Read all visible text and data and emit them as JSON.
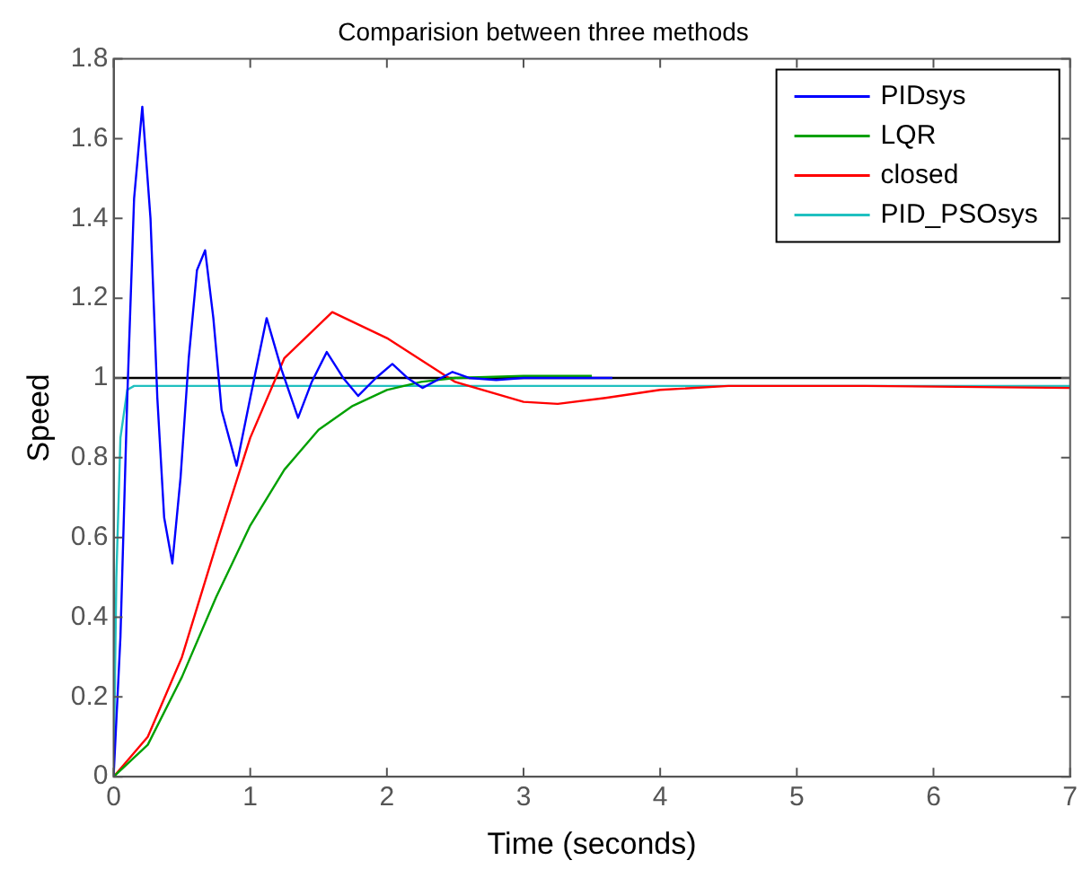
{
  "chart_data": {
    "type": "line",
    "title": "Comparision between three methods",
    "xlabel": "Time (seconds)",
    "ylabel": "Speed",
    "xlim": [
      0,
      7
    ],
    "xticks": [
      0,
      1,
      2,
      3,
      4,
      5,
      6,
      7
    ],
    "ylim": [
      0,
      1.8
    ],
    "yticks": [
      0,
      0.2,
      0.4,
      0.6,
      0.8,
      1,
      1.2,
      1.4,
      1.6,
      1.8
    ],
    "grid": false,
    "legend": "top right",
    "marker": "none",
    "line_style": "solid",
    "ref_lines": [
      {
        "axis": "y",
        "value": 1,
        "color": "#000000"
      }
    ],
    "series": [
      {
        "name": "PIDsys",
        "color": "#0000ff",
        "x": [
          0,
          0.05,
          0.1,
          0.15,
          0.21,
          0.27,
          0.32,
          0.37,
          0.43,
          0.49,
          0.55,
          0.61,
          0.67,
          0.73,
          0.79,
          0.9,
          1.0,
          1.12,
          1.23,
          1.35,
          1.45,
          1.56,
          1.68,
          1.79,
          1.92,
          2.04,
          2.15,
          2.26,
          2.37,
          2.48,
          2.6,
          2.8,
          3.0,
          3.65
        ],
        "values": [
          0,
          0.35,
          0.95,
          1.45,
          1.68,
          1.4,
          0.95,
          0.65,
          0.535,
          0.75,
          1.05,
          1.27,
          1.32,
          1.15,
          0.92,
          0.78,
          0.95,
          1.15,
          1.02,
          0.9,
          0.99,
          1.065,
          1.0,
          0.955,
          1.0,
          1.035,
          1.0,
          0.975,
          0.995,
          1.015,
          1.0,
          0.995,
          1.0,
          1.0
        ]
      },
      {
        "name": "LQR",
        "color": "#00a000",
        "x": [
          0,
          0.25,
          0.5,
          0.75,
          1,
          1.25,
          1.5,
          1.75,
          2,
          2.25,
          2.5,
          3,
          3.5
        ],
        "values": [
          0,
          0.08,
          0.25,
          0.45,
          0.63,
          0.77,
          0.87,
          0.93,
          0.97,
          0.99,
          1.0,
          1.005,
          1.005
        ]
      },
      {
        "name": "closed",
        "color": "#ff0000",
        "x": [
          0,
          0.25,
          0.5,
          0.75,
          1,
          1.25,
          1.6,
          2,
          2.5,
          3,
          3.25,
          3.6,
          4,
          4.5,
          5.5,
          7
        ],
        "values": [
          0,
          0.1,
          0.3,
          0.58,
          0.85,
          1.05,
          1.165,
          1.1,
          0.99,
          0.94,
          0.935,
          0.95,
          0.97,
          0.98,
          0.98,
          0.975
        ]
      },
      {
        "name": "PID_PSOsys",
        "color": "#20c0c0",
        "x": [
          0,
          0.02,
          0.05,
          0.1,
          0.15,
          7
        ],
        "values": [
          0,
          0.5,
          0.85,
          0.97,
          0.98,
          0.98
        ]
      }
    ]
  }
}
